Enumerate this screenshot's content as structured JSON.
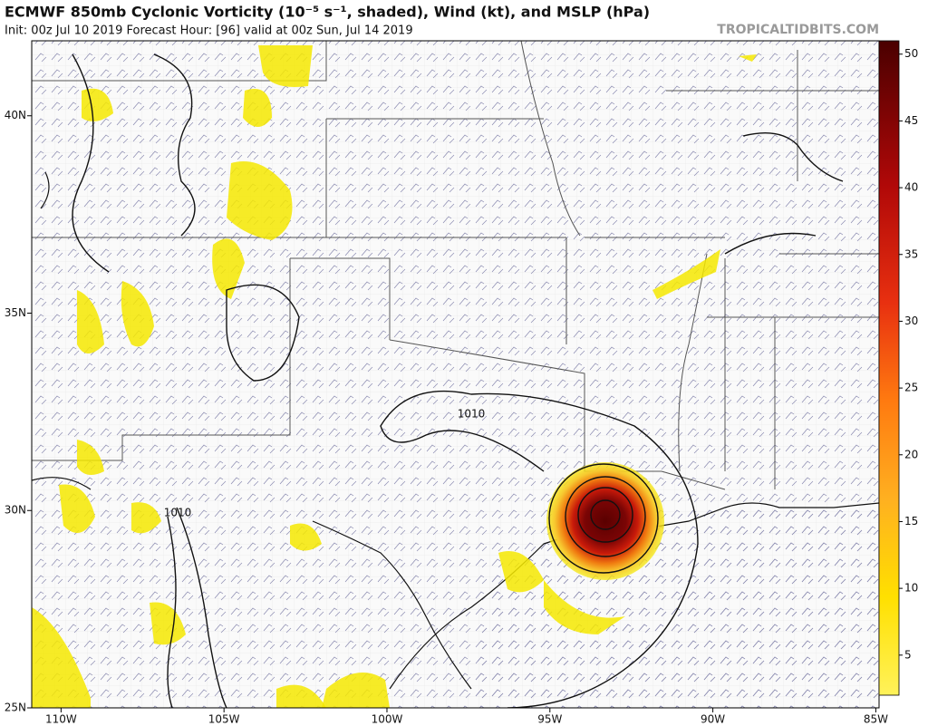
{
  "header": {
    "title": "ECMWF 850mb Cyclonic Vorticity (10⁻⁵ s⁻¹, shaded), Wind (kt), and MSLP (hPa)",
    "subtitle": "Init: 00z Jul 10 2019   Forecast Hour: [96]   valid at 00z Sun, Jul 14 2019",
    "site": "TROPICALTIDBITS.COM"
  },
  "map": {
    "lon_lim": [
      -110.9,
      -84.9
    ],
    "lon_ticks": [
      {
        "value": -110,
        "label": "110W"
      },
      {
        "value": -105,
        "label": "105W"
      },
      {
        "value": -100,
        "label": "100W"
      },
      {
        "value": -95,
        "label": "95W"
      },
      {
        "value": -90,
        "label": "90W"
      },
      {
        "value": -85,
        "label": "85W"
      }
    ],
    "lat_lim": [
      25,
      41.9
    ],
    "lat_ticks": [
      {
        "value": 25,
        "label": "25N"
      },
      {
        "value": 30,
        "label": "30N"
      },
      {
        "value": 35,
        "label": "35N"
      },
      {
        "value": 40,
        "label": "40N"
      }
    ],
    "contour_labels": [
      "1010",
      "1010"
    ]
  },
  "colorbar": {
    "lim": [
      2,
      51
    ],
    "ticks": [
      5,
      10,
      15,
      20,
      25,
      30,
      35,
      40,
      45,
      50
    ]
  }
}
